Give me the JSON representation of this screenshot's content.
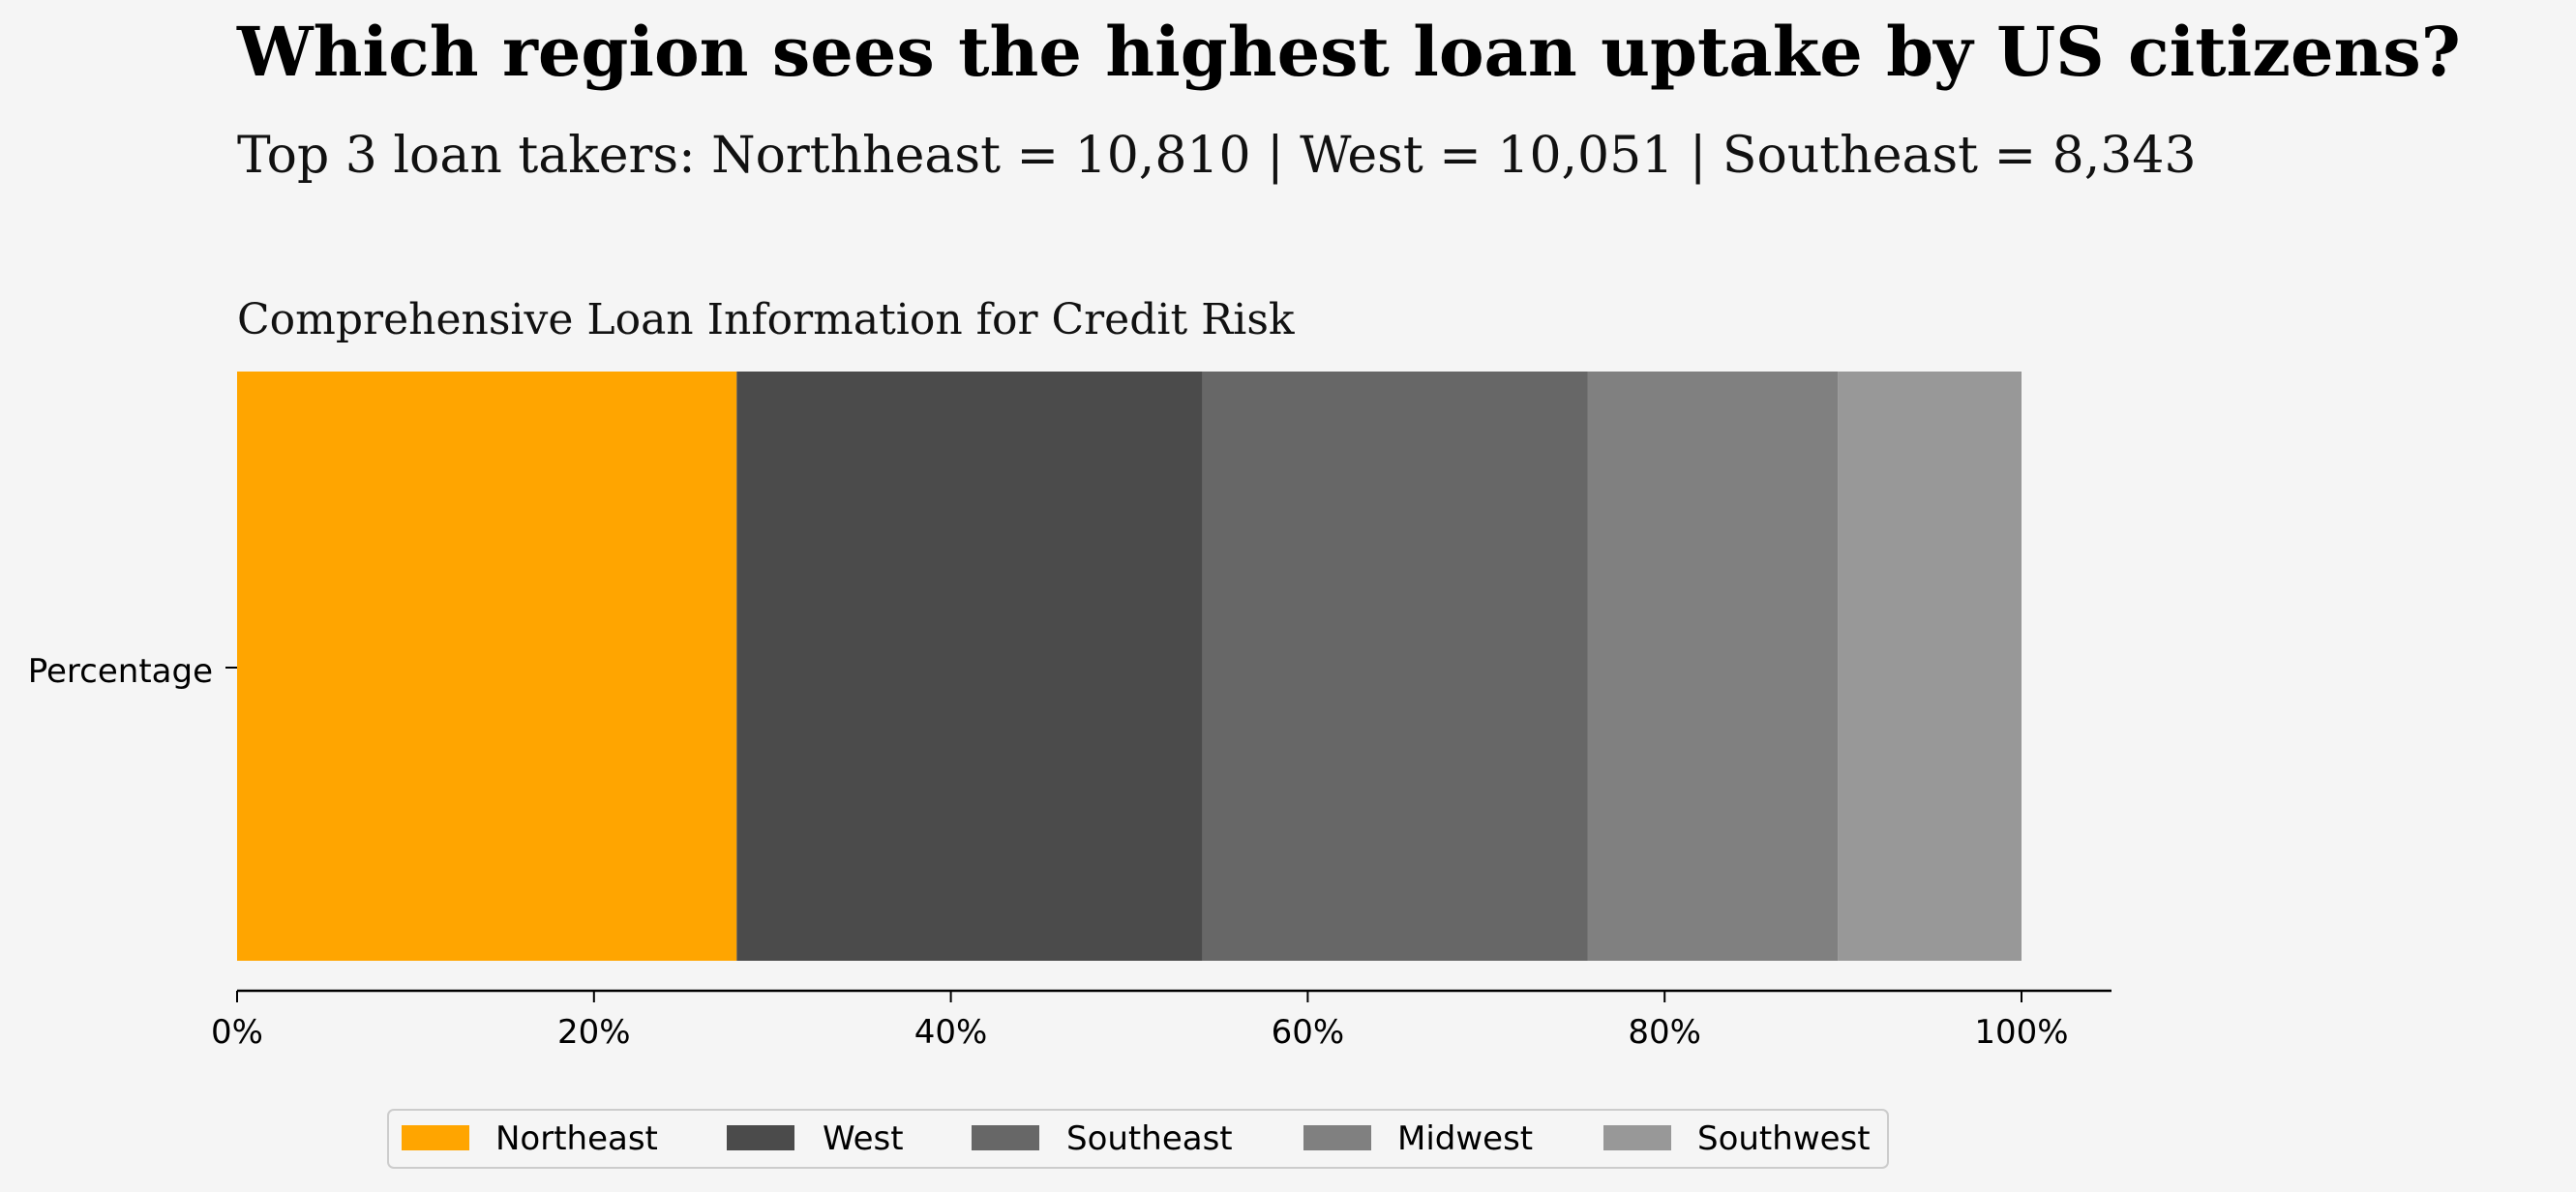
{
  "title": "Which region sees the highest loan uptake by US citizens?",
  "subtitle": "Top 3 loan takers:  Northheast = 10,810 | West = 10,051 | Southeast = 8,343",
  "chart_title": "Comprehensive Loan Information for Credit Risk",
  "chart_data": {
    "type": "bar",
    "orientation": "horizontal",
    "stacked": true,
    "categories": [
      "Percentage"
    ],
    "series": [
      {
        "name": "Northeast",
        "values": [
          28.0
        ],
        "color": "#ffa500"
      },
      {
        "name": "West",
        "values": [
          26.1
        ],
        "color": "#4b4b4b"
      },
      {
        "name": "Southeast",
        "values": [
          21.6
        ],
        "color": "#676767"
      },
      {
        "name": "Midwest",
        "values": [
          14.0
        ],
        "color": "#808080"
      },
      {
        "name": "Southwest",
        "values": [
          10.3
        ],
        "color": "#989898"
      }
    ],
    "xlim": [
      0,
      105
    ],
    "xticks": [
      0,
      20,
      40,
      60,
      80,
      100
    ],
    "xtick_labels": [
      "0%",
      "20%",
      "40%",
      "60%",
      "80%",
      "100%"
    ],
    "ylabel_tick": "Percentage",
    "grid": false,
    "legend": {
      "position": "bottom-center",
      "entries": [
        "Northeast",
        "West",
        "Southeast",
        "Midwest",
        "Southwest"
      ]
    }
  }
}
